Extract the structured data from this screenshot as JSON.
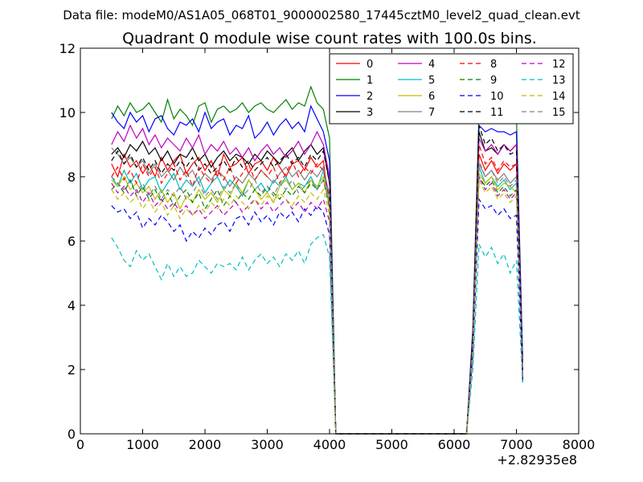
{
  "header": {
    "data_file": "Data file: modeM0/AS1A05_068T01_9000002580_17445cztM0_level2_quad_clean.evt"
  },
  "chart_data": {
    "type": "line",
    "title": "Quadrant 0 module wise count rates with 100.0s bins.",
    "xlabel": "",
    "ylabel": "",
    "x_offset_label": "+2.82935e8",
    "xlim": [
      0,
      8000
    ],
    "ylim": [
      0,
      12
    ],
    "xticks": [
      "0",
      "1000",
      "2000",
      "3000",
      "4000",
      "5000",
      "6000",
      "7000",
      "8000"
    ],
    "yticks": [
      "0",
      "2",
      "4",
      "6",
      "8",
      "10",
      "12"
    ],
    "grid": false,
    "legend_position": "top-right",
    "x": [
      500,
      600,
      700,
      800,
      900,
      1000,
      1100,
      1200,
      1300,
      1400,
      1500,
      1600,
      1700,
      1800,
      1900,
      2000,
      2100,
      2200,
      2300,
      2400,
      2500,
      2600,
      2700,
      2800,
      2900,
      3000,
      3100,
      3200,
      3300,
      3400,
      3500,
      3600,
      3700,
      3800,
      3900,
      4000,
      4100,
      4200,
      4300,
      4400,
      4500,
      4600,
      4700,
      4800,
      4900,
      5000,
      5100,
      5200,
      5300,
      5400,
      5500,
      5600,
      5700,
      5800,
      5900,
      6000,
      6100,
      6200,
      6300,
      6400,
      6500,
      6600,
      6700,
      6800,
      6900,
      7000,
      7100
    ],
    "series": [
      {
        "name": "0",
        "color": "#ff0000",
        "dash": "solid",
        "values": [
          8.4,
          8.0,
          8.7,
          8.3,
          8.5,
          8.1,
          8.4,
          8.0,
          8.6,
          8.2,
          8.5,
          8.7,
          8.1,
          8.4,
          8.6,
          8.2,
          8.5,
          8.0,
          8.7,
          8.3,
          8.4,
          8.6,
          8.1,
          8.4,
          8.5,
          8.2,
          8.6,
          8.3,
          8.0,
          8.4,
          8.5,
          8.2,
          8.6,
          8.3,
          8.5,
          7.0,
          0,
          0,
          0,
          0,
          0,
          0,
          0,
          0,
          0,
          0,
          0,
          0,
          0,
          0,
          0,
          0,
          0,
          0,
          0,
          0,
          0,
          0,
          2.8,
          8.7,
          8.2,
          8.5,
          8.1,
          8.4,
          8.2,
          8.4,
          2.0
        ]
      },
      {
        "name": "1",
        "color": "#008000",
        "dash": "solid",
        "values": [
          9.8,
          10.2,
          9.9,
          10.3,
          10.0,
          10.1,
          10.3,
          10.0,
          9.7,
          10.4,
          9.8,
          10.1,
          9.9,
          9.6,
          10.2,
          10.3,
          9.7,
          10.1,
          10.2,
          10.0,
          10.1,
          10.3,
          10.0,
          10.2,
          10.3,
          10.1,
          10.0,
          10.2,
          10.4,
          10.1,
          10.3,
          10.2,
          10.8,
          10.3,
          10.1,
          9.2,
          0,
          0,
          0,
          0,
          0,
          0,
          0,
          0,
          0,
          0,
          0,
          0,
          0,
          0,
          0,
          0,
          0,
          0,
          0,
          0,
          0,
          0,
          3.3,
          10.1,
          10.2,
          9.9,
          10.0,
          9.8,
          10.1,
          9.9,
          2.3
        ]
      },
      {
        "name": "2",
        "color": "#0000ff",
        "dash": "solid",
        "values": [
          10.0,
          9.7,
          9.5,
          10.0,
          9.7,
          9.9,
          9.4,
          9.8,
          9.9,
          9.5,
          9.3,
          9.7,
          9.6,
          9.8,
          9.4,
          10.0,
          9.5,
          9.7,
          9.8,
          9.3,
          9.6,
          9.5,
          9.9,
          9.2,
          9.4,
          9.7,
          9.3,
          9.6,
          9.8,
          9.5,
          9.7,
          9.4,
          10.2,
          9.8,
          9.4,
          8.5,
          0,
          0,
          0,
          0,
          0,
          0,
          0,
          0,
          0,
          0,
          0,
          0,
          0,
          0,
          0,
          0,
          0,
          0,
          0,
          0,
          0,
          0,
          3.2,
          9.6,
          9.4,
          9.5,
          9.4,
          9.4,
          9.3,
          9.4,
          2.3
        ]
      },
      {
        "name": "3",
        "color": "#000000",
        "dash": "solid",
        "values": [
          8.7,
          8.9,
          8.6,
          9.0,
          8.8,
          9.1,
          8.7,
          8.9,
          8.5,
          8.8,
          8.4,
          8.7,
          8.6,
          8.9,
          8.5,
          8.7,
          8.3,
          8.6,
          8.8,
          8.5,
          8.7,
          8.6,
          8.4,
          8.7,
          8.5,
          8.8,
          8.6,
          8.4,
          8.7,
          8.9,
          8.5,
          8.8,
          9.0,
          8.7,
          8.9,
          7.8,
          0,
          0,
          0,
          0,
          0,
          0,
          0,
          0,
          0,
          0,
          0,
          0,
          0,
          0,
          0,
          0,
          0,
          0,
          0,
          0,
          0,
          0,
          3.0,
          9.4,
          8.8,
          8.9,
          8.7,
          9.0,
          8.8,
          9.0,
          1.6
        ]
      },
      {
        "name": "4",
        "color": "#bf00bf",
        "dash": "solid",
        "values": [
          9.0,
          9.4,
          9.1,
          9.6,
          9.2,
          9.5,
          9.0,
          9.3,
          8.9,
          9.2,
          9.0,
          8.8,
          9.2,
          8.9,
          9.3,
          8.7,
          9.0,
          8.8,
          9.1,
          8.7,
          8.9,
          8.6,
          8.9,
          8.5,
          8.8,
          9.0,
          8.7,
          8.9,
          8.6,
          8.8,
          9.1,
          8.7,
          9.0,
          9.4,
          9.0,
          8.0,
          0,
          0,
          0,
          0,
          0,
          0,
          0,
          0,
          0,
          0,
          0,
          0,
          0,
          0,
          0,
          0,
          0,
          0,
          0,
          0,
          0,
          0,
          3.0,
          9.2,
          8.8,
          9.0,
          8.7,
          9.0,
          8.8,
          9.0,
          2.0
        ]
      },
      {
        "name": "5",
        "color": "#00bfbf",
        "dash": "solid",
        "values": [
          8.0,
          7.7,
          8.2,
          7.8,
          8.1,
          7.6,
          7.9,
          8.0,
          7.5,
          7.8,
          8.1,
          7.6,
          7.9,
          7.7,
          8.0,
          7.5,
          7.8,
          8.0,
          7.6,
          7.9,
          7.7,
          7.4,
          7.9,
          7.6,
          7.8,
          7.5,
          7.9,
          7.7,
          8.0,
          7.6,
          7.8,
          7.7,
          8.0,
          7.6,
          8.2,
          7.2,
          0,
          0,
          0,
          0,
          0,
          0,
          0,
          0,
          0,
          0,
          0,
          0,
          0,
          0,
          0,
          0,
          0,
          0,
          0,
          0,
          0,
          0,
          2.7,
          8.3,
          7.8,
          8.0,
          7.7,
          7.9,
          7.6,
          7.8,
          1.8
        ]
      },
      {
        "name": "6",
        "color": "#bfbf00",
        "dash": "solid",
        "values": [
          7.9,
          7.7,
          8.0,
          7.6,
          7.8,
          7.5,
          7.7,
          7.3,
          7.6,
          7.2,
          7.5,
          7.0,
          7.4,
          7.2,
          7.6,
          7.3,
          7.5,
          7.2,
          7.6,
          7.4,
          7.8,
          7.5,
          7.9,
          7.6,
          7.3,
          7.5,
          7.2,
          7.7,
          7.9,
          7.6,
          7.8,
          7.5,
          7.9,
          7.7,
          8.0,
          7.1,
          0,
          0,
          0,
          0,
          0,
          0,
          0,
          0,
          0,
          0,
          0,
          0,
          0,
          0,
          0,
          0,
          0,
          0,
          0,
          0,
          0,
          0,
          2.6,
          8.1,
          7.8,
          8.0,
          7.6,
          7.8,
          7.7,
          7.5,
          1.8
        ]
      },
      {
        "name": "7",
        "color": "#808080",
        "dash": "solid",
        "values": [
          8.9,
          8.7,
          8.4,
          8.6,
          8.3,
          8.5,
          8.1,
          8.4,
          8.0,
          8.2,
          7.9,
          8.3,
          8.0,
          8.2,
          7.8,
          8.1,
          7.9,
          8.2,
          8.0,
          7.7,
          8.0,
          7.8,
          8.1,
          7.9,
          8.2,
          8.0,
          7.8,
          8.1,
          8.3,
          8.0,
          8.2,
          7.9,
          8.2,
          8.0,
          8.3,
          7.4,
          0,
          0,
          0,
          0,
          0,
          0,
          0,
          0,
          0,
          0,
          0,
          0,
          0,
          0,
          0,
          0,
          0,
          0,
          0,
          0,
          0,
          0,
          2.7,
          8.4,
          8.0,
          8.2,
          7.9,
          8.1,
          7.8,
          8.0,
          1.8
        ]
      },
      {
        "name": "8",
        "color": "#ff0000",
        "dash": "dashed",
        "values": [
          8.0,
          8.3,
          7.9,
          8.2,
          7.8,
          8.4,
          8.0,
          8.3,
          7.8,
          8.1,
          8.4,
          7.9,
          8.2,
          7.7,
          8.3,
          8.0,
          7.8,
          8.2,
          7.9,
          8.3,
          7.8,
          8.1,
          8.4,
          7.9,
          8.2,
          8.0,
          8.3,
          7.8,
          8.1,
          8.5,
          8.0,
          8.3,
          8.1,
          8.4,
          8.2,
          7.3,
          0,
          0,
          0,
          0,
          0,
          0,
          0,
          0,
          0,
          0,
          0,
          0,
          0,
          0,
          0,
          0,
          0,
          0,
          0,
          0,
          0,
          0,
          2.8,
          9.0,
          8.4,
          8.6,
          8.2,
          8.5,
          8.3,
          8.4,
          1.9
        ]
      },
      {
        "name": "9",
        "color": "#008000",
        "dash": "dashed",
        "values": [
          7.6,
          7.8,
          7.5,
          7.9,
          7.4,
          7.7,
          7.3,
          7.6,
          7.2,
          7.5,
          7.1,
          7.4,
          7.6,
          7.2,
          7.5,
          7.0,
          7.3,
          7.6,
          7.1,
          7.4,
          7.2,
          7.5,
          7.3,
          7.6,
          7.4,
          7.7,
          7.5,
          7.3,
          7.6,
          7.4,
          7.7,
          7.5,
          7.8,
          7.6,
          7.9,
          7.0,
          0,
          0,
          0,
          0,
          0,
          0,
          0,
          0,
          0,
          0,
          0,
          0,
          0,
          0,
          0,
          0,
          0,
          0,
          0,
          0,
          0,
          0,
          2.6,
          8.0,
          7.7,
          7.9,
          7.5,
          7.7,
          7.4,
          7.6,
          1.8
        ]
      },
      {
        "name": "10",
        "color": "#0000ff",
        "dash": "dashed",
        "values": [
          7.1,
          6.9,
          7.0,
          6.7,
          6.9,
          6.4,
          6.7,
          6.5,
          6.8,
          6.6,
          6.3,
          6.5,
          6.0,
          6.3,
          6.1,
          6.4,
          6.2,
          6.5,
          6.6,
          6.3,
          6.7,
          6.8,
          6.5,
          6.9,
          6.6,
          6.8,
          6.5,
          6.9,
          6.7,
          6.9,
          6.6,
          7.0,
          6.8,
          7.1,
          6.9,
          6.2,
          0,
          0,
          0,
          0,
          0,
          0,
          0,
          0,
          0,
          0,
          0,
          0,
          0,
          0,
          0,
          0,
          0,
          0,
          0,
          0,
          0,
          0,
          2.4,
          7.3,
          7.0,
          7.1,
          6.8,
          7.0,
          6.7,
          6.8,
          1.7
        ]
      },
      {
        "name": "11",
        "color": "#000000",
        "dash": "dashed",
        "values": [
          8.5,
          8.8,
          8.4,
          8.7,
          8.3,
          8.6,
          8.2,
          8.5,
          8.1,
          8.4,
          8.2,
          8.5,
          8.3,
          8.6,
          8.2,
          8.4,
          8.1,
          8.3,
          8.5,
          8.2,
          8.6,
          8.3,
          8.5,
          8.2,
          8.4,
          8.6,
          8.3,
          8.5,
          8.7,
          8.4,
          8.6,
          8.3,
          8.7,
          8.5,
          8.8,
          7.8,
          0,
          0,
          0,
          0,
          0,
          0,
          0,
          0,
          0,
          0,
          0,
          0,
          0,
          0,
          0,
          0,
          0,
          0,
          0,
          0,
          0,
          0,
          3.0,
          9.6,
          9.0,
          9.2,
          8.8,
          9.0,
          8.7,
          8.8,
          2.0
        ]
      },
      {
        "name": "12",
        "color": "#bf00bf",
        "dash": "dashed",
        "values": [
          7.8,
          7.5,
          7.7,
          7.4,
          7.6,
          7.2,
          7.5,
          7.1,
          7.3,
          7.0,
          7.2,
          6.9,
          7.1,
          6.8,
          7.0,
          6.7,
          6.9,
          7.1,
          6.8,
          7.0,
          7.2,
          6.9,
          7.1,
          7.3,
          7.0,
          7.2,
          6.9,
          7.1,
          7.3,
          7.0,
          7.2,
          6.9,
          7.2,
          7.0,
          7.3,
          6.6,
          0,
          0,
          0,
          0,
          0,
          0,
          0,
          0,
          0,
          0,
          0,
          0,
          0,
          0,
          0,
          0,
          0,
          0,
          0,
          0,
          0,
          0,
          2.6,
          8.0,
          7.6,
          7.8,
          7.4,
          7.6,
          7.3,
          7.5,
          1.8
        ]
      },
      {
        "name": "13",
        "color": "#00bfbf",
        "dash": "dashed",
        "values": [
          6.1,
          5.8,
          5.4,
          5.2,
          5.7,
          5.4,
          5.6,
          5.2,
          4.8,
          5.3,
          4.9,
          5.2,
          4.9,
          5.0,
          5.4,
          5.2,
          5.0,
          5.3,
          5.2,
          5.3,
          5.1,
          5.5,
          5.1,
          5.4,
          5.6,
          5.3,
          5.5,
          5.2,
          5.6,
          5.4,
          5.7,
          5.3,
          5.9,
          6.1,
          6.2,
          5.5,
          0,
          0,
          0,
          0,
          0,
          0,
          0,
          0,
          0,
          0,
          0,
          0,
          0,
          0,
          0,
          0,
          0,
          0,
          0,
          0,
          0,
          0,
          2.0,
          5.9,
          5.5,
          5.8,
          5.3,
          5.6,
          5.0,
          5.4,
          1.6
        ]
      },
      {
        "name": "14",
        "color": "#bfbf00",
        "dash": "dashed",
        "values": [
          7.6,
          7.3,
          7.5,
          7.2,
          7.4,
          7.0,
          7.3,
          6.9,
          7.2,
          6.8,
          7.1,
          6.7,
          7.0,
          6.8,
          7.1,
          6.9,
          7.2,
          7.0,
          7.3,
          7.1,
          7.4,
          7.2,
          7.0,
          7.3,
          7.1,
          7.4,
          7.2,
          7.5,
          7.3,
          7.1,
          7.4,
          7.2,
          7.5,
          7.3,
          7.6,
          6.8,
          0,
          0,
          0,
          0,
          0,
          0,
          0,
          0,
          0,
          0,
          0,
          0,
          0,
          0,
          0,
          0,
          0,
          0,
          0,
          0,
          0,
          0,
          2.5,
          7.9,
          7.5,
          7.7,
          7.3,
          7.5,
          7.2,
          7.4,
          1.8
        ]
      },
      {
        "name": "15",
        "color": "#808080",
        "dash": "dashed",
        "values": [
          8.0,
          7.8,
          7.6,
          7.9,
          7.5,
          7.8,
          7.4,
          7.7,
          7.3,
          7.6,
          7.4,
          7.7,
          7.3,
          7.5,
          7.8,
          7.4,
          7.6,
          7.3,
          7.7,
          7.5,
          7.8,
          7.4,
          7.6,
          7.9,
          7.5,
          7.7,
          7.4,
          7.8,
          7.6,
          7.9,
          7.5,
          7.7,
          7.9,
          7.6,
          7.9,
          7.1,
          0,
          0,
          0,
          0,
          0,
          0,
          0,
          0,
          0,
          0,
          0,
          0,
          0,
          0,
          0,
          0,
          0,
          0,
          0,
          0,
          0,
          0,
          2.7,
          8.5,
          8.0,
          8.2,
          7.8,
          8.0,
          7.7,
          7.9,
          1.8
        ]
      }
    ]
  }
}
